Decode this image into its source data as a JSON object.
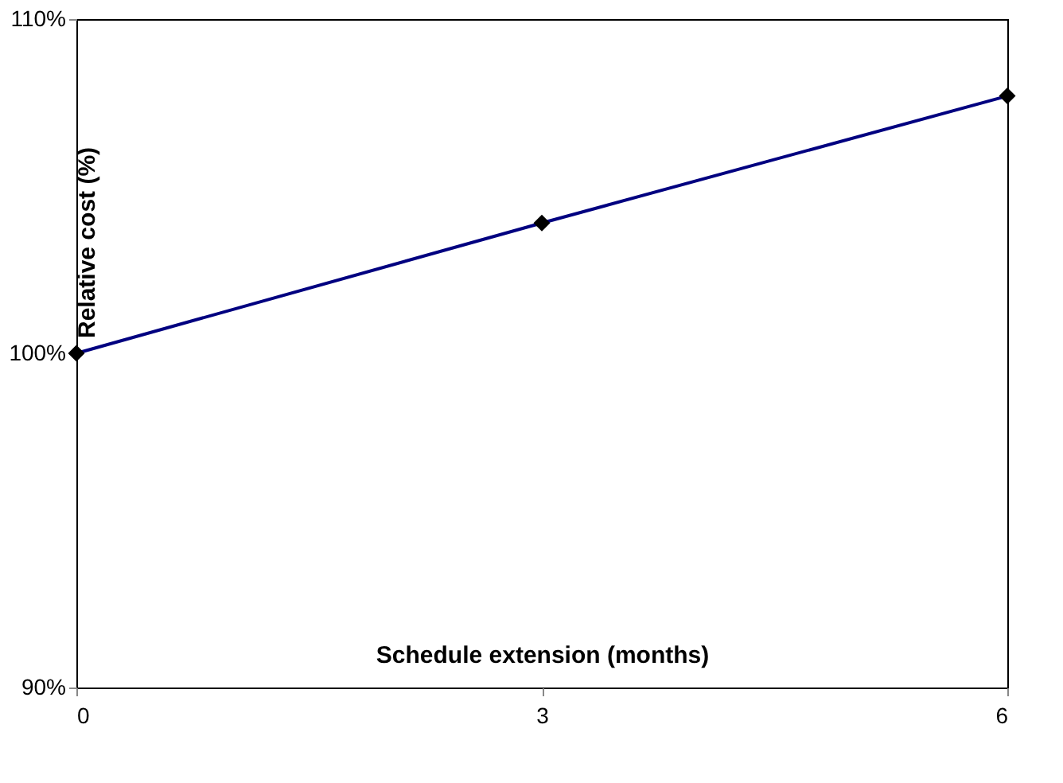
{
  "chart_data": {
    "type": "line",
    "xlabel": "Schedule extension (months)",
    "ylabel": "Relative cost (%)",
    "x": [
      0,
      3,
      6
    ],
    "series": [
      {
        "color": "#000080",
        "values": [
          100,
          103.9,
          107.7
        ]
      }
    ],
    "xlim": [
      0,
      6
    ],
    "xticks": [
      0,
      3,
      6
    ],
    "ylim": [
      90,
      110
    ],
    "yticks": [
      {
        "value": 90,
        "label": "90%"
      },
      {
        "value": 100,
        "label": "100%"
      },
      {
        "value": 110,
        "label": "110%"
      }
    ],
    "grid": false,
    "marker": "diamond",
    "line_style": "solid"
  }
}
